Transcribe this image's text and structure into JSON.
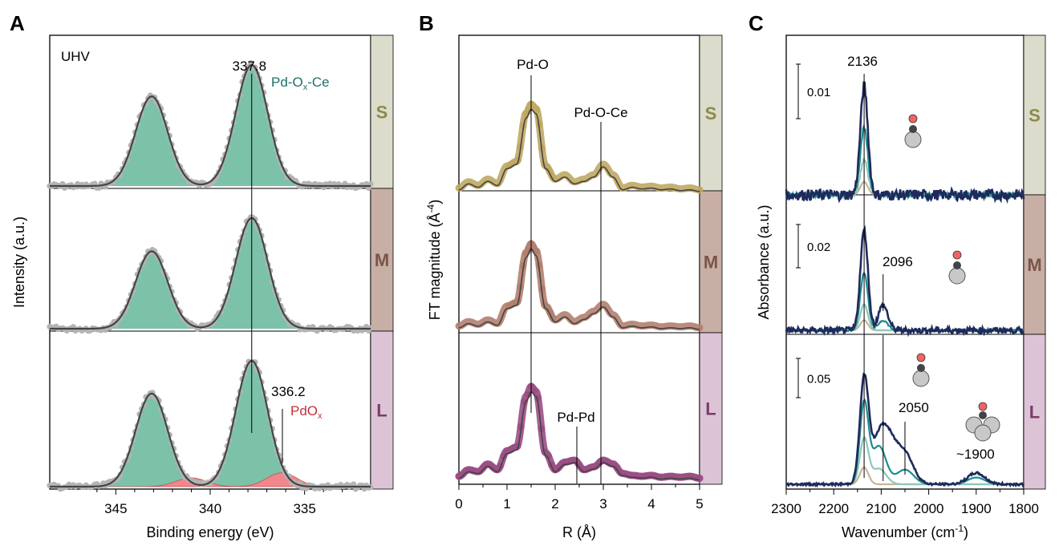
{
  "colors": {
    "S_band": "#dcdccc",
    "M_band": "#c8afa5",
    "L_band": "#dcc3d5",
    "S_letter": "#8c8a4b",
    "M_letter": "#7a5548",
    "L_letter": "#7b3d69",
    "xps_fill": "#74bfa4",
    "xps_pts": "#b4b4b4",
    "fit_line": "#444444",
    "pdox_fill": "#f0878c",
    "pdox_label": "#c0303c",
    "pdoxce_label": "#1f6f6a",
    "exafs_S": "#bfa963",
    "exafs_M": "#b2806f",
    "exafs_L": "#9b4f86",
    "ir_dark": "#1f2a5c",
    "ir_teal": "#1e8c8c",
    "ir_mint": "#8ec8b8",
    "ir_tan": "#c8b49a",
    "mol_O": "#f06464",
    "mol_C": "#444444",
    "mol_Pd": "#c8c8c8"
  },
  "chart_data": [
    {
      "panel": "A",
      "type": "line",
      "xlabel": "Binding energy (eV)",
      "ylabel": "Intensity (a.u.)",
      "xlim": [
        348.5,
        331.5
      ],
      "xticks": [
        "345",
        "340",
        "335"
      ],
      "inner_label": "UHV",
      "rows": [
        "S",
        "M",
        "L"
      ],
      "annotations": {
        "peak_main": "337.8",
        "main_species": "Pd-O",
        "main_sub": "x",
        "main_suffix": "-Ce",
        "peak_pdox": "336.2",
        "pdox": "PdO",
        "pdox_sub": "x"
      },
      "series": [
        {
          "row": "S",
          "peaks": [
            {
              "center": 343.1,
              "height": 0.74,
              "width": 0.85
            },
            {
              "center": 337.8,
              "height": 1.0,
              "width": 0.85
            }
          ]
        },
        {
          "row": "M",
          "peaks": [
            {
              "center": 343.1,
              "height": 0.7,
              "width": 0.85
            },
            {
              "center": 337.8,
              "height": 1.0,
              "width": 0.85
            }
          ]
        },
        {
          "row": "L",
          "peaks": [
            {
              "center": 343.1,
              "height": 0.74,
              "width": 0.85
            },
            {
              "center": 337.8,
              "height": 1.0,
              "width": 0.85
            }
          ],
          "pdox_peaks": [
            {
              "center": 341.0,
              "height": 0.07,
              "width": 0.8
            },
            {
              "center": 336.2,
              "height": 0.11,
              "width": 0.8
            }
          ]
        }
      ]
    },
    {
      "panel": "B",
      "type": "line",
      "xlabel": "R (Å)",
      "ylabel": "FT magnitude (Å",
      "ylabel_sup": "-4",
      "ylabel_end": ")",
      "xlim": [
        0,
        5
      ],
      "xticks": [
        "0",
        "1",
        "2",
        "3",
        "4",
        "5"
      ],
      "rows": [
        "S",
        "M",
        "L"
      ],
      "annotations": {
        "pdo": "Pd-O",
        "pdoce": "Pd-O-Ce",
        "pdpd": "Pd-Pd"
      },
      "series": [
        {
          "row": "S",
          "x": [
            0,
            0.2,
            0.4,
            0.6,
            0.8,
            1.0,
            1.2,
            1.4,
            1.5,
            1.6,
            1.8,
            2.0,
            2.2,
            2.4,
            2.6,
            2.8,
            3.0,
            3.2,
            3.4,
            3.6,
            3.8,
            4.0,
            4.2,
            4.4,
            4.6,
            4.8,
            5.0
          ],
          "y": [
            0.05,
            0.12,
            0.08,
            0.15,
            0.1,
            0.3,
            0.35,
            0.9,
            1.0,
            0.95,
            0.3,
            0.15,
            0.2,
            0.12,
            0.15,
            0.2,
            0.32,
            0.2,
            0.05,
            0.08,
            0.06,
            0.07,
            0.05,
            0.06,
            0.04,
            0.05,
            0.03
          ]
        },
        {
          "row": "M",
          "x": [
            0,
            0.2,
            0.4,
            0.6,
            0.8,
            1.0,
            1.2,
            1.4,
            1.5,
            1.6,
            1.8,
            2.0,
            2.2,
            2.4,
            2.6,
            2.8,
            3.0,
            3.2,
            3.4,
            3.6,
            3.8,
            4.0,
            4.2,
            4.4,
            4.6,
            4.8,
            5.0
          ],
          "y": [
            0.05,
            0.1,
            0.07,
            0.12,
            0.08,
            0.28,
            0.32,
            0.9,
            1.0,
            0.92,
            0.28,
            0.12,
            0.18,
            0.1,
            0.15,
            0.22,
            0.3,
            0.18,
            0.05,
            0.07,
            0.05,
            0.06,
            0.04,
            0.05,
            0.04,
            0.05,
            0.03
          ]
        },
        {
          "row": "L",
          "x": [
            0,
            0.2,
            0.4,
            0.6,
            0.8,
            1.0,
            1.2,
            1.4,
            1.5,
            1.6,
            1.8,
            2.0,
            2.2,
            2.4,
            2.6,
            2.8,
            3.0,
            3.2,
            3.4,
            3.6,
            3.8,
            4.0,
            4.2,
            4.4,
            4.6,
            4.8,
            5.0
          ],
          "y": [
            0.05,
            0.12,
            0.1,
            0.18,
            0.12,
            0.32,
            0.36,
            0.9,
            1.0,
            0.95,
            0.3,
            0.12,
            0.2,
            0.22,
            0.12,
            0.15,
            0.22,
            0.18,
            0.08,
            0.06,
            0.05,
            0.06,
            0.04,
            0.05,
            0.04,
            0.05,
            0.03
          ]
        }
      ]
    },
    {
      "panel": "C",
      "type": "line",
      "xlabel": "Wavenumber (cm",
      "xlabel_sup": "-1",
      "xlabel_end": ")",
      "ylabel": "Absorbance (a.u.)",
      "xlim": [
        2300,
        1800
      ],
      "xticks": [
        "2300",
        "2200",
        "2100",
        "2000",
        "1900",
        "1800"
      ],
      "rows": [
        "S",
        "M",
        "L"
      ],
      "scalebars": [
        "0.01",
        "0.02",
        "0.05"
      ],
      "annotations": {
        "peak_2136": "2136",
        "peak_2096": "2096",
        "peak_2050": "2050",
        "peak_1900": "~1900"
      },
      "series": [
        {
          "row": "S",
          "traces": [
            {
              "peaks": [
                {
                  "c": 2136,
                  "h": 1.0,
                  "w": 8
                }
              ],
              "noise": 0.05
            },
            {
              "peaks": [
                {
                  "c": 2136,
                  "h": 0.62,
                  "w": 8
                }
              ],
              "noise": 0.02
            },
            {
              "peaks": [
                {
                  "c": 2136,
                  "h": 0.32,
                  "w": 8
                }
              ],
              "noise": 0.02
            },
            {
              "peaks": [
                {
                  "c": 2136,
                  "h": 0.12,
                  "w": 8
                }
              ],
              "noise": 0.0
            }
          ]
        },
        {
          "row": "M",
          "traces": [
            {
              "peaks": [
                {
                  "c": 2136,
                  "h": 1.0,
                  "w": 8
                },
                {
                  "c": 2096,
                  "h": 0.25,
                  "w": 10
                }
              ],
              "noise": 0.03
            },
            {
              "peaks": [
                {
                  "c": 2136,
                  "h": 0.58,
                  "w": 8
                },
                {
                  "c": 2096,
                  "h": 0.1,
                  "w": 10
                }
              ],
              "noise": 0.01
            },
            {
              "peaks": [
                {
                  "c": 2136,
                  "h": 0.26,
                  "w": 8
                }
              ],
              "noise": 0.0
            },
            {
              "peaks": [
                {
                  "c": 2136,
                  "h": 0.1,
                  "w": 8
                }
              ],
              "noise": 0.0
            }
          ]
        },
        {
          "row": "L",
          "traces": [
            {
              "peaks": [
                {
                  "c": 2136,
                  "h": 0.88,
                  "w": 9
                },
                {
                  "c": 2096,
                  "h": 0.53,
                  "w": 22
                },
                {
                  "c": 2050,
                  "h": 0.25,
                  "w": 18
                },
                {
                  "c": 1900,
                  "h": 0.1,
                  "w": 18
                }
              ],
              "noise": 0.01
            },
            {
              "peaks": [
                {
                  "c": 2136,
                  "h": 0.71,
                  "w": 9
                },
                {
                  "c": 2105,
                  "h": 0.34,
                  "w": 15
                },
                {
                  "c": 2050,
                  "h": 0.13,
                  "w": 18
                },
                {
                  "c": 1900,
                  "h": 0.06,
                  "w": 18
                }
              ],
              "noise": 0.0
            },
            {
              "peaks": [
                {
                  "c": 2136,
                  "h": 0.4,
                  "w": 9
                },
                {
                  "c": 2105,
                  "h": 0.14,
                  "w": 15
                }
              ],
              "noise": 0.0
            },
            {
              "peaks": [
                {
                  "c": 2136,
                  "h": 0.15,
                  "w": 9
                }
              ],
              "noise": 0.0
            }
          ]
        }
      ]
    }
  ]
}
